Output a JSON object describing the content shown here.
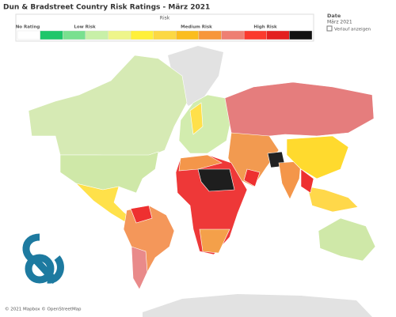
{
  "header": {
    "title": "Dun & Bradstreet Country Risk Ratings - März 2021"
  },
  "legend": {
    "title": "Risk",
    "groups": [
      "No Rating",
      "Low Risk",
      "Medium Risk",
      "High Risk"
    ],
    "colors": [
      "#ffffff",
      "#1fc66a",
      "#79e08f",
      "#c8f0a8",
      "#eef58a",
      "#fff03a",
      "#fcd843",
      "#fbbd1d",
      "#f7963a",
      "#ee7f73",
      "#fb3a2e",
      "#e32020",
      "#111111"
    ]
  },
  "filter": {
    "title": "Date",
    "value": "März 2021",
    "checkbox_label": "Verlauf anzeigen"
  },
  "attribution": "© 2021 Mapbox © OpenStreetMap"
}
